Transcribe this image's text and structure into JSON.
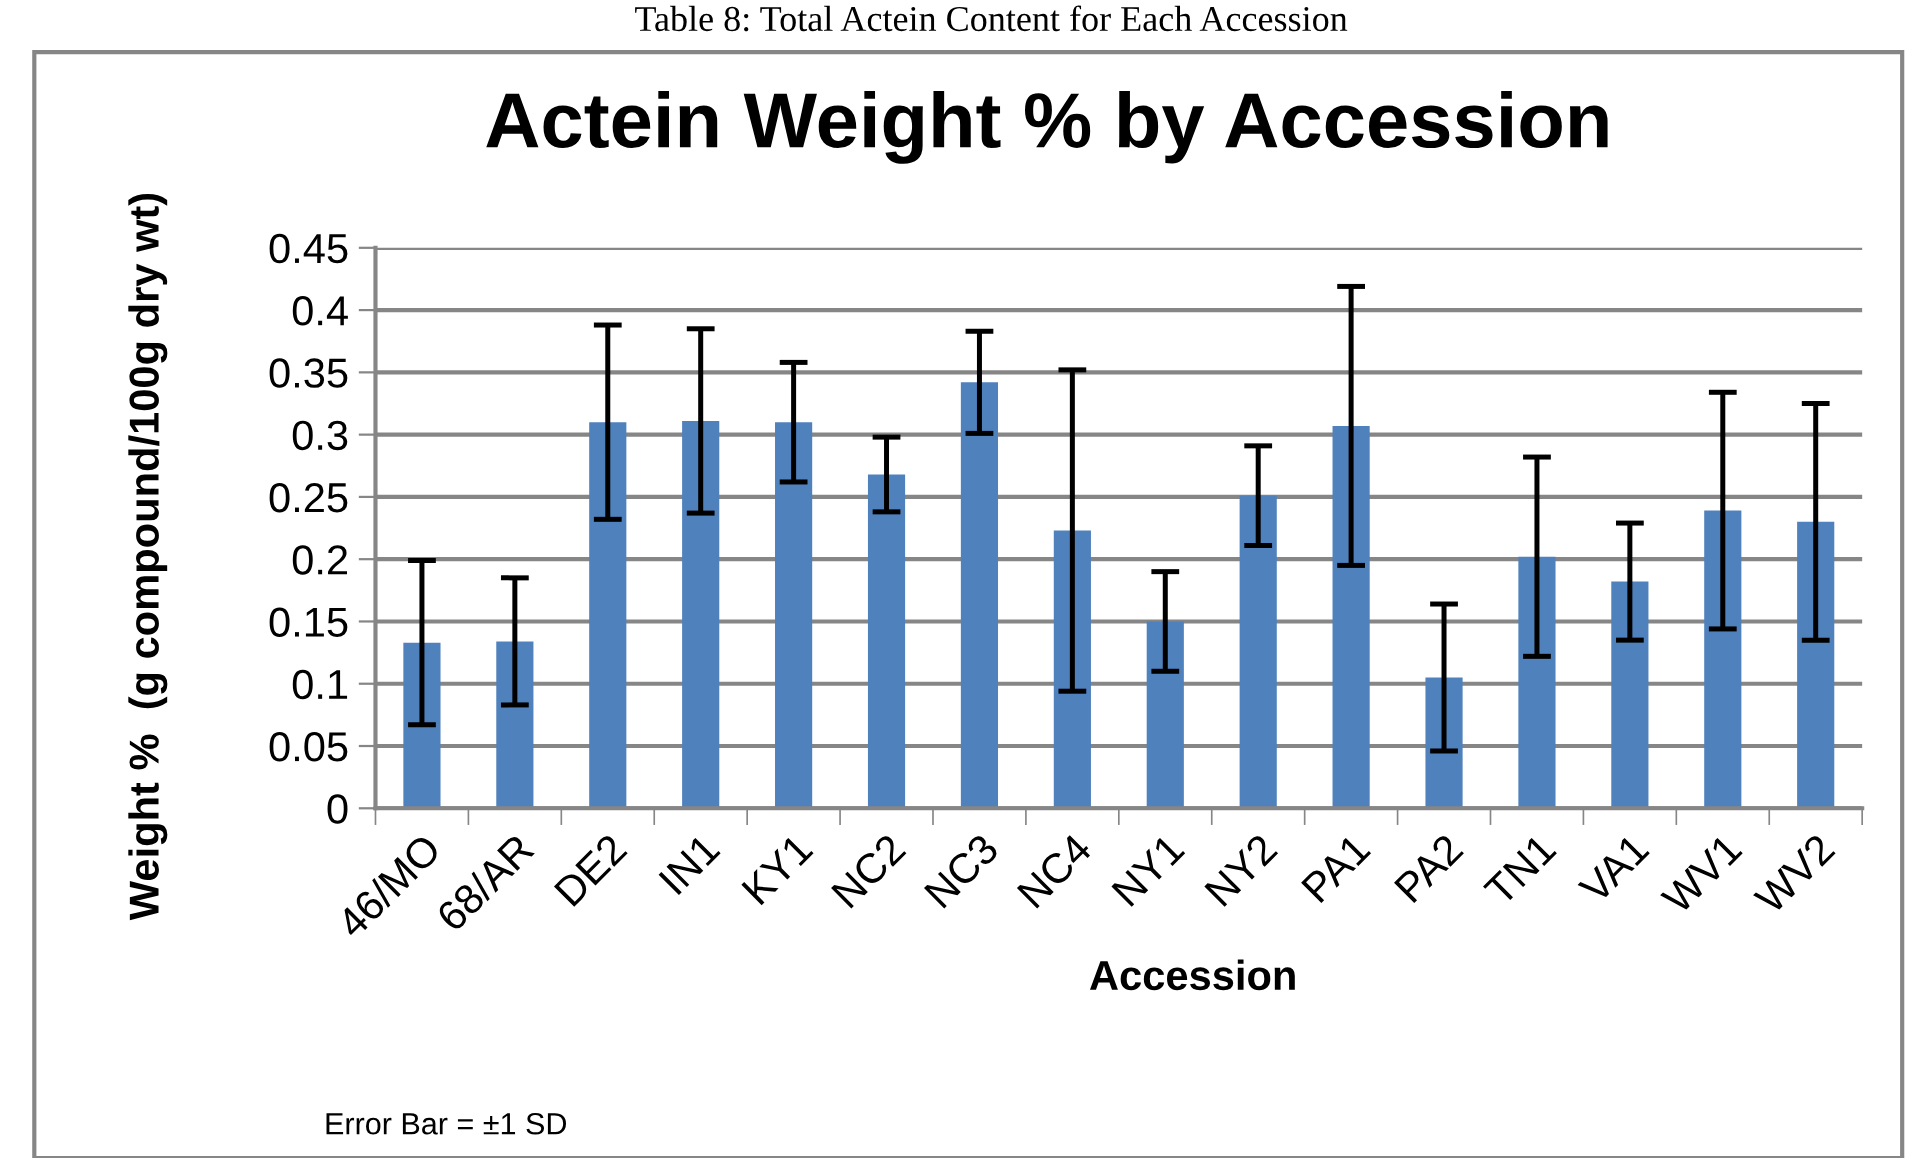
{
  "chart_data": {
    "type": "bar",
    "title": "Actein Weight % by Accession",
    "xlabel": "Accession",
    "ylabel": "Weight %  (g compound/100g dry wt)",
    "annotations": [
      "Table 8: Total Actein Content for Each Accession",
      "Error Bar = ±1 SD"
    ],
    "categories": [
      "46/MO",
      "68/AR",
      "DE2",
      "IN1",
      "KY1",
      "NC2",
      "NC3",
      "NC4",
      "NY1",
      "NY2",
      "PA1",
      "PA2",
      "TN1",
      "VA1",
      "WV1",
      "WV2"
    ],
    "values": [
      0.133,
      0.134,
      0.31,
      0.311,
      0.31,
      0.268,
      0.342,
      0.223,
      0.15,
      0.251,
      0.307,
      0.105,
      0.202,
      0.182,
      0.239,
      0.23
    ],
    "errors": [
      0.066,
      0.051,
      0.078,
      0.074,
      0.048,
      0.03,
      0.041,
      0.129,
      0.04,
      0.04,
      0.112,
      0.059,
      0.08,
      0.047,
      0.095,
      0.095
    ],
    "color": "#4f81bd",
    "ylim": [
      0,
      0.45
    ],
    "yticks": [
      0,
      0.05,
      0.1,
      0.15,
      0.2,
      0.25,
      0.3,
      0.35,
      0.4,
      0.45
    ],
    "grid": "y",
    "legend": false
  }
}
